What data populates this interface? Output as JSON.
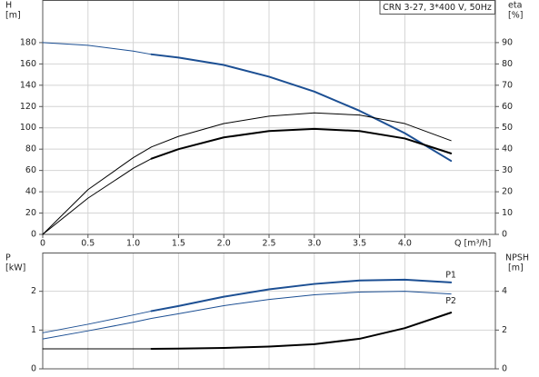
{
  "chart_data": [
    {
      "type": "line",
      "title": "CRN 3-27, 3*400 V, 50Hz",
      "ylabel": "H",
      "yunit": "[m]",
      "y2label": "eta",
      "y2unit": "[%]",
      "xlabel": "Q [m³/h]",
      "xlim": [
        0,
        5
      ],
      "xticks": [
        0,
        0.5,
        {
          "value": 1,
          "label": "1.0"
        },
        1.5,
        {
          "value": 2,
          "label": "2.0"
        },
        2.5,
        {
          "value": 3,
          "label": "3.0"
        },
        3.5,
        {
          "value": 4,
          "label": "4.0"
        }
      ],
      "ylim": [
        0,
        220
      ],
      "yticks": [
        0,
        20,
        40,
        60,
        80,
        100,
        120,
        140,
        160,
        180
      ],
      "y2lim": [
        0,
        110
      ],
      "y2ticks": [
        0,
        10,
        20,
        30,
        40,
        50,
        60,
        70,
        80,
        90
      ],
      "grid": true,
      "x": [
        0,
        0.5,
        1.0,
        1.2,
        1.5,
        2.0,
        2.5,
        3.0,
        3.5,
        4.0,
        4.51
      ],
      "series": [
        {
          "color": "#1c4f93",
          "width": 1,
          "values": [
            180,
            177.5,
            172,
            169,
            null,
            null,
            null,
            null,
            null,
            null,
            null
          ]
        },
        {
          "color": "#1c4f93",
          "width": 2,
          "values": [
            null,
            null,
            null,
            169,
            166,
            159,
            148,
            134,
            116,
            95,
            69
          ]
        },
        {
          "color": "#000000",
          "width": 1,
          "axis": "y2",
          "values": [
            0,
            21,
            36,
            41,
            46,
            52,
            55.5,
            57,
            56,
            52,
            44
          ]
        },
        {
          "color": "#000000",
          "width": 1,
          "axis": "y2",
          "values": [
            0,
            17,
            31,
            35.5,
            null,
            null,
            null,
            null,
            null,
            null,
            null
          ]
        },
        {
          "color": "#000000",
          "width": 2,
          "axis": "y2",
          "values": [
            null,
            null,
            null,
            35.5,
            40,
            45.5,
            48.5,
            49.5,
            48.5,
            45,
            38
          ]
        }
      ]
    },
    {
      "type": "line",
      "ylabel": "P",
      "yunit": "[kW]",
      "y2label": "NPSH",
      "y2unit": "[m]",
      "xlim": [
        0,
        5
      ],
      "ylim": [
        0,
        3
      ],
      "yticks": [
        0,
        1,
        2
      ],
      "y2lim": [
        0,
        6
      ],
      "y2ticks": [
        0,
        2,
        4
      ],
      "grid": true,
      "x": [
        0,
        0.5,
        1.0,
        1.2,
        1.5,
        2.0,
        2.5,
        3.0,
        3.5,
        4.0,
        4.51
      ],
      "series": [
        {
          "color": "#1c4f93",
          "width": 1,
          "values": [
            0.93,
            1.15,
            1.39,
            1.49,
            null,
            null,
            null,
            null,
            null,
            null,
            null
          ]
        },
        {
          "name": "P1",
          "label_pos": "above",
          "color": "#1c4f93",
          "width": 2,
          "values": [
            null,
            null,
            null,
            1.49,
            1.62,
            1.86,
            2.05,
            2.19,
            2.28,
            2.3,
            2.23
          ]
        },
        {
          "name": "P2",
          "label_pos": "below",
          "color": "#1c4f93",
          "width": 1,
          "values": [
            0.77,
            0.98,
            1.2,
            1.3,
            1.42,
            1.63,
            1.79,
            1.91,
            1.98,
            2.0,
            1.93
          ]
        },
        {
          "color": "#000000",
          "width": 1,
          "axis": "y2",
          "values": [
            1.03,
            1.03,
            1.03,
            1.03,
            null,
            null,
            null,
            null,
            null,
            null,
            null
          ]
        },
        {
          "color": "#000000",
          "width": 2,
          "axis": "y2",
          "values": [
            null,
            null,
            null,
            1.03,
            1.04,
            1.08,
            1.15,
            1.27,
            1.55,
            2.1,
            2.9
          ]
        }
      ]
    }
  ]
}
